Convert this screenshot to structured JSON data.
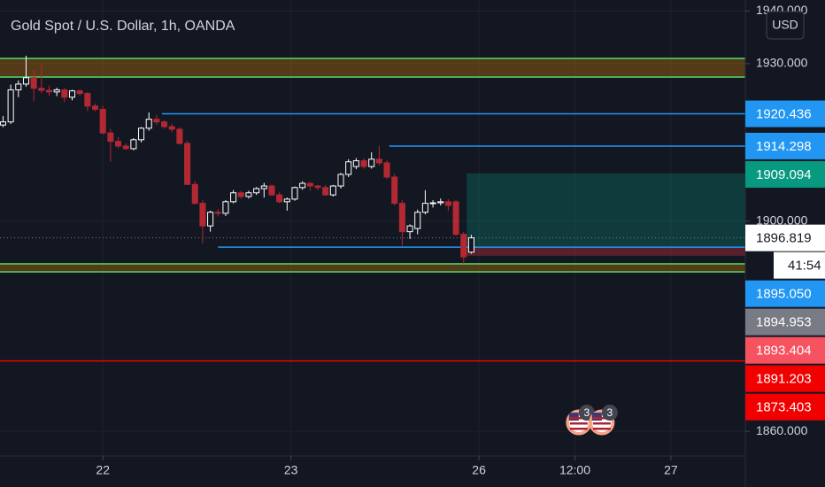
{
  "chart_data": {
    "type": "candlestick",
    "title": "Gold Spot / U.S. Dollar, 1h, OANDA",
    "currency": "USD",
    "up_color": "#ffffff",
    "down_color": "#b22833",
    "x": [
      -13,
      -12,
      -11,
      -10,
      -9,
      -8,
      -7,
      -6,
      -5,
      -4,
      -3,
      -2,
      -1,
      0,
      1,
      2,
      3,
      4,
      5,
      6,
      7,
      8,
      9,
      10,
      11,
      12,
      13,
      14,
      15,
      16,
      17,
      18,
      19,
      20,
      21,
      22,
      23,
      24,
      25,
      26,
      27,
      28,
      29,
      30,
      31,
      32,
      33,
      34,
      35,
      36,
      37,
      38,
      39,
      40,
      41,
      42,
      43,
      44,
      45,
      46,
      47,
      48
    ],
    "open": [
      1918.3,
      1918.9,
      1925.0,
      1926.1,
      1927.3,
      1925.3,
      1924.9,
      1924.6,
      1925.0,
      1923.6,
      1924.8,
      1924.3,
      1921.9,
      1921.3,
      1916.8,
      1915.2,
      1914.3,
      1913.8,
      1915.5,
      1917.7,
      1919.4,
      1918.9,
      1918.0,
      1917.5,
      1914.8,
      1907.0,
      1903.4,
      1899.1,
      1901.7,
      1901.5,
      1903.7,
      1905.4,
      1904.7,
      1905.4,
      1906.2,
      1906.7,
      1905.0,
      1903.7,
      1904.2,
      1906.4,
      1907.2,
      1906.7,
      1906.4,
      1905.0,
      1906.7,
      1908.9,
      1910.4,
      1911.5,
      1910.4,
      1911.8,
      1911.1,
      1908.4,
      1903.4,
      1898.0,
      1898.6,
      1901.7,
      1903.4,
      1903.5,
      1903.7,
      1903.7,
      1897.5,
      1894.1
    ],
    "high": [
      1920.0,
      1926.0,
      1926.8,
      1931.5,
      1928.8,
      1929.8,
      1925.8,
      1925.4,
      1925.3,
      1925.0,
      1925.1,
      1924.6,
      1922.4,
      1922.0,
      1917.6,
      1916.0,
      1914.8,
      1915.8,
      1917.9,
      1920.7,
      1920.2,
      1919.2,
      1918.6,
      1917.9,
      1915.3,
      1907.6,
      1904.0,
      1902.0,
      1902.3,
      1904.0,
      1905.9,
      1905.8,
      1905.8,
      1906.5,
      1907.3,
      1907.0,
      1905.5,
      1904.5,
      1906.6,
      1907.6,
      1907.5,
      1906.9,
      1906.9,
      1906.9,
      1909.2,
      1911.8,
      1912.0,
      1912.0,
      1913.1,
      1914.3,
      1911.6,
      1909.0,
      1904.0,
      1899.4,
      1902.2,
      1905.9,
      1904.0,
      1904.3,
      1904.2,
      1904.0,
      1898.0,
      1897.4
    ],
    "low": [
      1917.9,
      1918.5,
      1923.6,
      1925.6,
      1922.8,
      1924.4,
      1923.9,
      1923.8,
      1922.7,
      1923.0,
      1923.9,
      1921.0,
      1920.9,
      1916.5,
      1911.3,
      1913.9,
      1913.6,
      1913.5,
      1915.0,
      1917.2,
      1918.3,
      1917.6,
      1916.9,
      1914.6,
      1906.9,
      1903.2,
      1895.8,
      1898.0,
      1900.9,
      1901.0,
      1903.4,
      1904.3,
      1904.3,
      1905.0,
      1904.5,
      1904.8,
      1903.4,
      1902.0,
      1903.9,
      1906.0,
      1905.8,
      1905.9,
      1904.8,
      1904.7,
      1906.2,
      1908.4,
      1909.9,
      1910.0,
      1910.0,
      1910.6,
      1908.0,
      1903.0,
      1895.3,
      1896.6,
      1897.5,
      1901.3,
      1902.6,
      1903.0,
      1902.0,
      1897.2,
      1891.9,
      1893.8
    ],
    "close": [
      1918.9,
      1925.0,
      1926.1,
      1927.3,
      1925.3,
      1924.9,
      1924.6,
      1925.0,
      1923.6,
      1924.8,
      1924.3,
      1921.9,
      1921.3,
      1916.8,
      1915.2,
      1914.3,
      1913.8,
      1915.5,
      1917.7,
      1919.4,
      1918.9,
      1918.0,
      1917.5,
      1914.8,
      1907.0,
      1903.4,
      1899.1,
      1901.7,
      1901.5,
      1903.7,
      1905.4,
      1904.7,
      1905.4,
      1906.2,
      1906.7,
      1905.0,
      1903.7,
      1904.2,
      1906.4,
      1907.2,
      1906.7,
      1906.4,
      1905.0,
      1906.7,
      1908.9,
      1911.3,
      1911.5,
      1910.4,
      1911.8,
      1911.1,
      1908.4,
      1903.4,
      1898.0,
      1899.1,
      1901.7,
      1903.4,
      1903.5,
      1903.7,
      1903.0,
      1897.5,
      1893.2,
      1896.819
    ],
    "xlim": [
      -13.4,
      83.7
    ],
    "xticks": [
      {
        "value": 0,
        "label": "22"
      },
      {
        "value": 24.5,
        "label": "23"
      },
      {
        "value": 49,
        "label": "26"
      },
      {
        "value": 61.5,
        "label": "12:00"
      },
      {
        "value": 74,
        "label": "27"
      }
    ],
    "ylim": [
      1855.3,
      1942.1
    ],
    "yticks": [
      {
        "value": 1940,
        "label": "1940.000"
      },
      {
        "value": 1930,
        "label": "1930.000"
      },
      {
        "value": 1900,
        "label": "1900.000"
      },
      {
        "value": 1860,
        "label": "1860.000"
      }
    ],
    "grid": true,
    "zones": [
      {
        "top": 1930.97,
        "bottom": 1927.44
      },
      {
        "top": 1891.87,
        "bottom": 1890.36
      }
    ],
    "position": {
      "from": 47.4,
      "target": 1909.094,
      "entry": 1895.05,
      "stop": 1893.404
    },
    "price_labels": [
      {
        "value": 1920.436,
        "label": "1920.436",
        "color": "#2196f3",
        "line_from": 7.7
      },
      {
        "value": 1914.298,
        "label": "1914.298",
        "color": "#2196f3",
        "line_from": 37.3
      },
      {
        "value": 1909.094,
        "label": "1909.094",
        "color": "#089981"
      },
      {
        "value": 1896.819,
        "label": "1896.819",
        "color": "#ffffff",
        "current": true,
        "countdown": "41:54"
      },
      {
        "value": 1895.05,
        "label": "1895.050",
        "color": "#2196f3",
        "line_from": 15
      },
      {
        "value": 1894.953,
        "label": "1894.953",
        "color": "#787b86"
      },
      {
        "value": 1893.404,
        "label": "1893.404",
        "color": "#f7525f"
      },
      {
        "value": 1891.203,
        "label": "1891.203",
        "color": "#f20000"
      },
      {
        "value": 1873.403,
        "label": "1873.403",
        "color": "#f20000",
        "line_from": -13.4
      }
    ],
    "events": [
      {
        "x": 62,
        "label": "3"
      },
      {
        "x": 65,
        "label": "3"
      }
    ]
  }
}
